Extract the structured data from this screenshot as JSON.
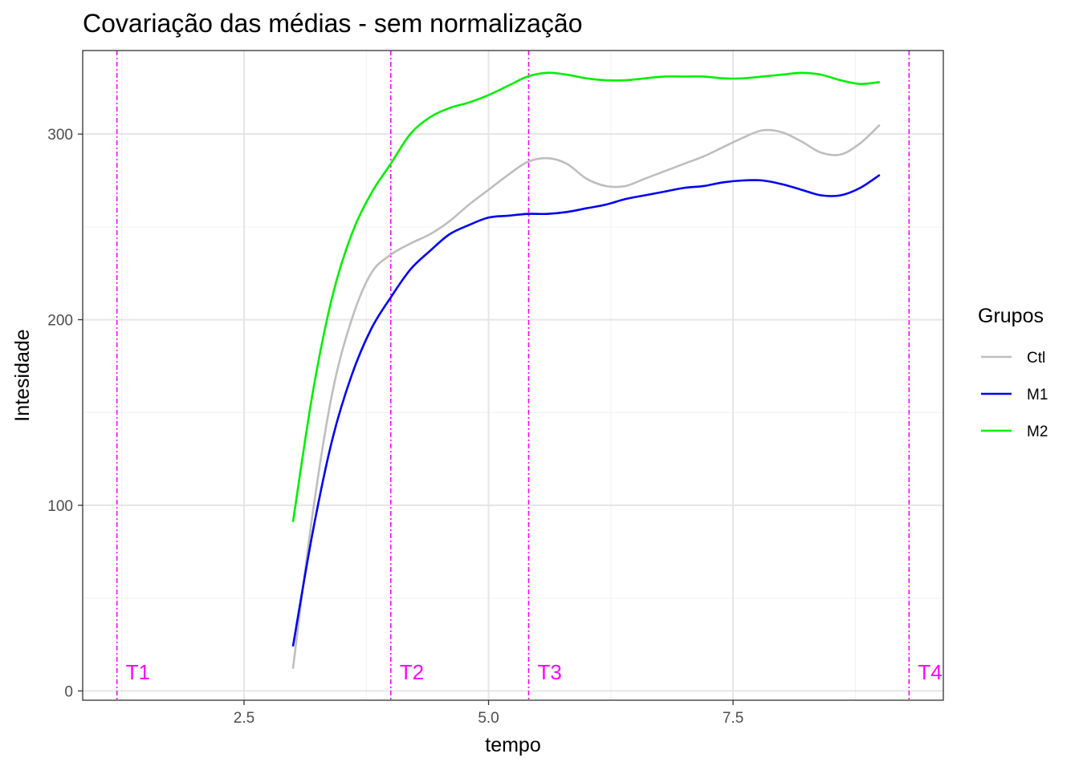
{
  "chart_data": {
    "type": "line",
    "title": "Covariação das médias - sem normalização",
    "xlabel": "tempo",
    "ylabel": "Intesidade",
    "xlim": [
      0.85,
      9.65
    ],
    "ylim": [
      -5,
      345
    ],
    "x_ticks": [
      2.5,
      5.0,
      7.5
    ],
    "x_tick_labels": [
      "2.5",
      "5.0",
      "7.5"
    ],
    "y_ticks": [
      0,
      100,
      200,
      300
    ],
    "y_tick_labels": [
      "0",
      "100",
      "200",
      "300"
    ],
    "grid": true,
    "legend": {
      "title": "Grupos",
      "position": "right"
    },
    "series": [
      {
        "name": "Ctl",
        "color": "#bebebe",
        "x": [
          3.0,
          3.2,
          3.4,
          3.6,
          3.8,
          4.0,
          4.2,
          4.4,
          4.6,
          4.8,
          5.0,
          5.2,
          5.4,
          5.6,
          5.8,
          6.0,
          6.2,
          6.4,
          6.6,
          6.8,
          7.0,
          7.2,
          7.4,
          7.6,
          7.8,
          8.0,
          8.2,
          8.4,
          8.6,
          8.8,
          9.0
        ],
        "y": [
          12,
          95,
          160,
          200,
          225,
          235,
          241,
          246,
          253,
          262,
          270,
          278,
          285,
          287,
          284,
          276,
          272,
          272,
          276,
          280,
          284,
          288,
          293,
          298,
          302,
          301,
          296,
          290,
          289,
          295,
          305
        ]
      },
      {
        "name": "M1",
        "color": "#0000ee",
        "x": [
          3.0,
          3.2,
          3.4,
          3.6,
          3.8,
          4.0,
          4.2,
          4.4,
          4.6,
          4.8,
          5.0,
          5.2,
          5.4,
          5.6,
          5.8,
          6.0,
          6.2,
          6.4,
          6.6,
          6.8,
          7.0,
          7.2,
          7.4,
          7.6,
          7.8,
          8.0,
          8.2,
          8.4,
          8.6,
          8.8,
          9.0
        ],
        "y": [
          24,
          85,
          135,
          170,
          195,
          212,
          227,
          237,
          246,
          251,
          255,
          256,
          257,
          257,
          258,
          260,
          262,
          265,
          267,
          269,
          271,
          272,
          274,
          275,
          275,
          273,
          270,
          267,
          267,
          271,
          278
        ]
      },
      {
        "name": "M2",
        "color": "#00ee00",
        "x": [
          3.0,
          3.2,
          3.4,
          3.6,
          3.8,
          4.0,
          4.2,
          4.4,
          4.6,
          4.8,
          5.0,
          5.2,
          5.4,
          5.6,
          5.8,
          6.0,
          6.2,
          6.4,
          6.6,
          6.8,
          7.0,
          7.2,
          7.4,
          7.6,
          7.8,
          8.0,
          8.2,
          8.4,
          8.6,
          8.8,
          9.0
        ],
        "y": [
          91,
          160,
          212,
          246,
          268,
          284,
          300,
          309,
          314,
          317,
          321,
          326,
          331,
          333,
          332,
          330,
          329,
          329,
          330,
          331,
          331,
          331,
          330,
          330,
          331,
          332,
          333,
          332,
          329,
          327,
          328
        ]
      }
    ],
    "vlines": [
      {
        "label": "T1",
        "x": 1.2,
        "color": "#ff00ff"
      },
      {
        "label": "T2",
        "x": 4.0,
        "color": "#ff00ff"
      },
      {
        "label": "T3",
        "x": 5.41,
        "color": "#ff00ff"
      },
      {
        "label": "T4",
        "x": 9.3,
        "color": "#ff00ff"
      }
    ]
  }
}
